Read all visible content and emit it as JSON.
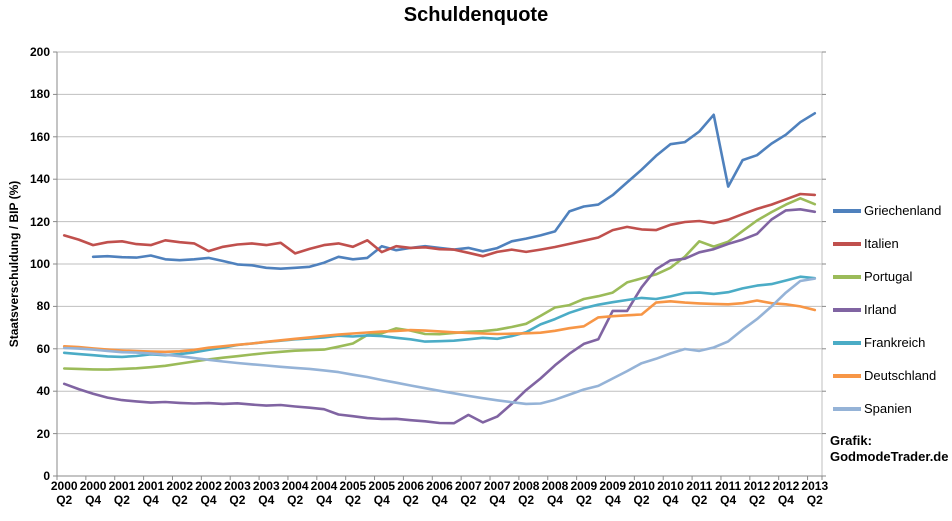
{
  "title": "Schuldenquote",
  "y_axis_title": "Staatsverschuldung / BIP (%)",
  "credit": {
    "line1": "Grafik:",
    "line2": "GodmodeTrader.de"
  },
  "colors": {
    "grid": "#bfbfbf",
    "axis": "#898989",
    "background": "#ffffff"
  },
  "chart_data": {
    "type": "line",
    "title": "Schuldenquote",
    "ylabel": "Staatsverschuldung / BIP (%)",
    "ylim": [
      0,
      200
    ],
    "y_ticks": [
      0,
      20,
      40,
      60,
      80,
      100,
      120,
      140,
      160,
      180,
      200
    ],
    "grid": true,
    "legend_position": "right",
    "x_unit": "quarter",
    "x_start": "2000 Q2",
    "x_end": "2013 Q2",
    "x_tick_labels": [
      "2000 Q2",
      "2000 Q4",
      "2001 Q2",
      "2001 Q4",
      "2002 Q2",
      "2002 Q4",
      "2003 Q2",
      "2003 Q4",
      "2004 Q2",
      "2004 Q4",
      "2005 Q2",
      "2005 Q4",
      "2006 Q2",
      "2006 Q4",
      "2007 Q2",
      "2007 Q4",
      "2008 Q2",
      "2008 Q4",
      "2009 Q2",
      "2009 Q4",
      "2010 Q2",
      "2010 Q4",
      "2011 Q2",
      "2011 Q4",
      "2012 Q2",
      "2012 Q4",
      "2013 Q2"
    ],
    "x_quarters_per_tick": 2,
    "series": [
      {
        "name": "Griechenland",
        "color": "#4F81BD",
        "values": [
          null,
          null,
          103.4,
          103.7,
          103.2,
          103.0,
          104.0,
          102.2,
          101.8,
          102.2,
          102.9,
          101.4,
          99.8,
          99.4,
          98.2,
          97.8,
          98.2,
          98.7,
          100.6,
          103.4,
          102.2,
          102.9,
          108.4,
          106.5,
          107.6,
          108.4,
          107.6,
          106.8,
          107.6,
          106.0,
          107.5,
          110.7,
          112.0,
          113.5,
          115.4,
          124.8,
          127.1,
          128.0,
          132.5,
          138.5,
          144.5,
          151.0,
          156.5,
          157.5,
          162.5,
          170.4,
          136.5,
          149.0,
          151.3,
          156.8,
          161.0,
          166.9,
          171.1
        ]
      },
      {
        "name": "Italien",
        "color": "#C0504D",
        "values": [
          113.5,
          111.5,
          108.9,
          110.3,
          110.7,
          109.4,
          108.9,
          111.2,
          110.3,
          109.7,
          106.1,
          108.1,
          109.2,
          109.7,
          108.9,
          110.0,
          105.0,
          107.1,
          108.9,
          109.7,
          108.1,
          111.2,
          105.6,
          108.4,
          107.6,
          107.9,
          107.0,
          106.8,
          105.3,
          103.7,
          105.7,
          106.8,
          105.7,
          106.8,
          108.0,
          109.5,
          111.0,
          112.5,
          116.0,
          117.5,
          116.3,
          116.0,
          118.5,
          119.8,
          120.3,
          119.3,
          120.9,
          123.5,
          126.0,
          128.0,
          130.5,
          133.0,
          132.6
        ]
      },
      {
        "name": "Portugal",
        "color": "#9BBB59",
        "values": [
          50.7,
          50.5,
          50.3,
          50.2,
          50.5,
          50.8,
          51.3,
          52.0,
          53.0,
          54.0,
          55.0,
          55.8,
          56.5,
          57.3,
          58.0,
          58.6,
          59.1,
          59.4,
          59.6,
          61.0,
          62.5,
          66.5,
          67.3,
          69.6,
          68.6,
          67.0,
          66.9,
          67.5,
          68.0,
          68.3,
          69.0,
          70.3,
          71.8,
          75.5,
          79.5,
          80.6,
          83.5,
          84.8,
          86.5,
          91.3,
          93.2,
          95.1,
          98.2,
          103.5,
          110.7,
          108.2,
          110.5,
          115.5,
          120.5,
          124.5,
          128.0,
          131.0,
          128.2
        ]
      },
      {
        "name": "Irland",
        "color": "#8064A2",
        "values": [
          43.5,
          41.0,
          38.8,
          37.0,
          35.8,
          35.2,
          34.6,
          34.9,
          34.5,
          34.2,
          34.4,
          34.0,
          34.3,
          33.7,
          33.2,
          33.5,
          32.8,
          32.2,
          31.5,
          29.0,
          28.2,
          27.3,
          26.9,
          27.0,
          26.3,
          25.8,
          25.0,
          24.9,
          28.8,
          25.3,
          28.0,
          34.0,
          40.5,
          46.0,
          52.2,
          57.7,
          62.3,
          64.5,
          77.9,
          77.9,
          89.0,
          97.5,
          101.7,
          102.5,
          105.5,
          107.0,
          109.5,
          111.5,
          114.2,
          121.0,
          125.3,
          125.8,
          124.6
        ]
      },
      {
        "name": "Frankreich",
        "color": "#4BACC6",
        "values": [
          58.1,
          57.5,
          57.0,
          56.4,
          56.2,
          56.6,
          57.4,
          57.0,
          57.5,
          58.3,
          59.5,
          60.5,
          61.8,
          62.5,
          63.2,
          63.8,
          64.5,
          64.9,
          65.4,
          66.2,
          65.8,
          66.3,
          66.0,
          65.2,
          64.5,
          63.4,
          63.6,
          63.8,
          64.5,
          65.2,
          64.7,
          66.0,
          67.8,
          71.5,
          74.0,
          77.0,
          79.2,
          80.8,
          82.0,
          83.0,
          84.0,
          83.5,
          84.7,
          86.3,
          86.5,
          85.9,
          86.7,
          88.5,
          89.8,
          90.5,
          92.2,
          94.0,
          93.3
        ]
      },
      {
        "name": "Deutschland",
        "color": "#F79646",
        "values": [
          61.2,
          60.8,
          60.2,
          59.6,
          59.2,
          58.9,
          58.7,
          58.6,
          58.8,
          59.5,
          60.5,
          61.2,
          61.9,
          62.5,
          63.3,
          64.0,
          64.7,
          65.4,
          66.1,
          66.7,
          67.2,
          67.7,
          68.1,
          68.4,
          68.8,
          68.6,
          68.2,
          67.8,
          67.5,
          67.2,
          67.0,
          67.1,
          67.3,
          67.6,
          68.5,
          69.7,
          70.6,
          74.8,
          75.4,
          75.8,
          76.2,
          81.8,
          82.4,
          81.8,
          81.4,
          81.2,
          81.0,
          81.5,
          82.8,
          81.5,
          81.0,
          80.0,
          78.3
        ]
      },
      {
        "name": "Spanien",
        "color": "#95B3D7",
        "values": [
          60.4,
          60.1,
          59.6,
          59.0,
          58.4,
          58.2,
          57.8,
          57.2,
          56.5,
          55.6,
          54.8,
          54.0,
          53.3,
          52.7,
          52.1,
          51.5,
          51.0,
          50.5,
          49.8,
          49.0,
          47.8,
          46.7,
          45.3,
          44.0,
          42.7,
          41.4,
          40.2,
          39.0,
          37.8,
          36.7,
          35.7,
          34.8,
          34.0,
          34.2,
          36.0,
          38.4,
          40.8,
          42.5,
          46.0,
          49.5,
          53.2,
          55.3,
          57.8,
          59.9,
          59.0,
          60.6,
          63.5,
          69.0,
          74.0,
          80.0,
          86.5,
          92.0,
          93.1
        ]
      }
    ]
  }
}
